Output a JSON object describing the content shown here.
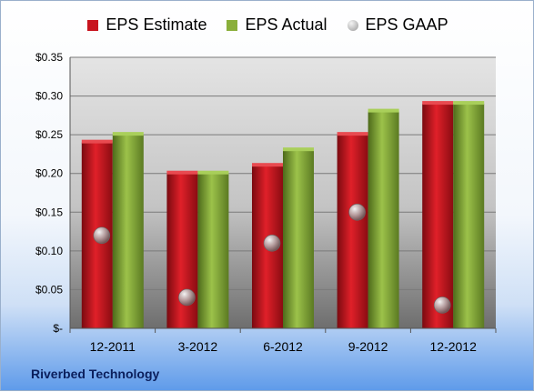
{
  "chart_data": {
    "type": "bar",
    "categories": [
      "12-2011",
      "3-2012",
      "6-2012",
      "9-2012",
      "12-2012"
    ],
    "series": [
      {
        "name": "EPS Estimate",
        "kind": "bar",
        "color": "#c8141e",
        "values": [
          0.24,
          0.2,
          0.21,
          0.25,
          0.29
        ]
      },
      {
        "name": "EPS Actual",
        "kind": "bar",
        "color": "#8aaf3a",
        "values": [
          0.25,
          0.2,
          0.23,
          0.28,
          0.29
        ]
      },
      {
        "name": "EPS GAAP",
        "kind": "marker",
        "color": "#b8b8b8",
        "values": [
          0.12,
          0.04,
          0.11,
          0.15,
          0.03
        ]
      }
    ],
    "ylim": [
      0,
      0.35
    ],
    "yticks": [
      0,
      0.05,
      0.1,
      0.15,
      0.2,
      0.25,
      0.3,
      0.35
    ],
    "ytick_labels": [
      "$-",
      "$0.05",
      "$0.10",
      "$0.15",
      "$0.20",
      "$0.25",
      "$0.30",
      "$0.35"
    ],
    "grid": true,
    "legend_position": "top"
  },
  "company": "Riverbed Technology"
}
